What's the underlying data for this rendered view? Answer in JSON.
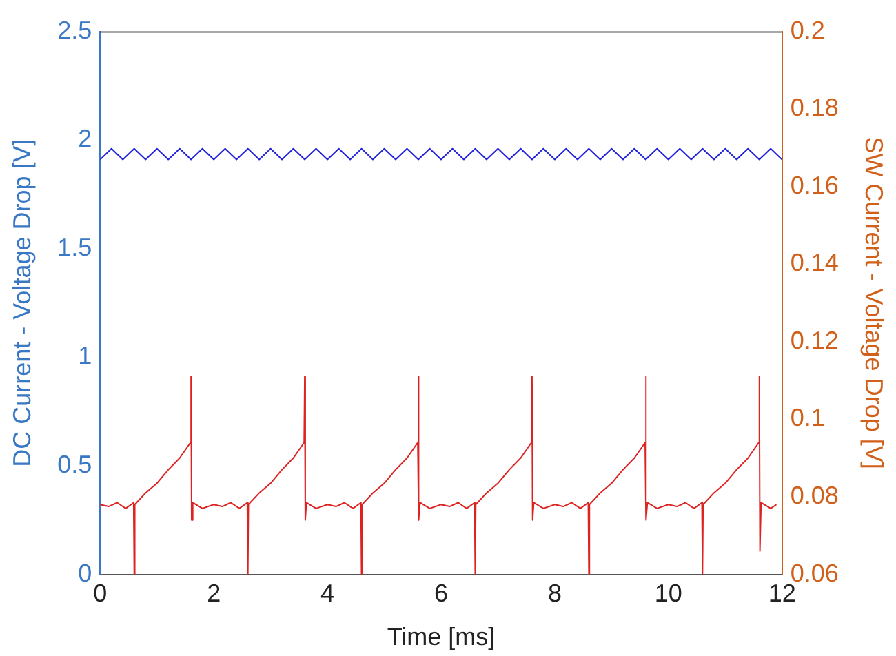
{
  "chart_data": {
    "type": "line",
    "xlabel": "Time [ms]",
    "ylabel": "DC Current - Voltage Drop [V]",
    "y2label": "SW Current - Voltage Drop [V]",
    "xlim": [
      0,
      12
    ],
    "xticks": [
      0,
      2,
      4,
      6,
      8,
      10,
      12
    ],
    "ylim": [
      0,
      2.5
    ],
    "yticks": [
      0,
      0.5,
      1,
      1.5,
      2,
      2.5
    ],
    "y2lim": [
      0.06,
      0.2
    ],
    "y2ticks": [
      0.06,
      0.08,
      0.1,
      0.12,
      0.14,
      0.16,
      0.18,
      0.2
    ],
    "grid": false,
    "legend": false,
    "marker": "none",
    "line_style": "solid",
    "series": [
      {
        "color": "#2222dd",
        "x": [
          0,
          0.2,
          0.4,
          0.6,
          0.8,
          1,
          1.2,
          1.4,
          1.6,
          1.8,
          2,
          2.2,
          2.4,
          2.6,
          2.8,
          3,
          3.2,
          3.4,
          3.6,
          3.8,
          4,
          4.2,
          4.4,
          4.6,
          4.8,
          5,
          5.2,
          5.4,
          5.6,
          5.8,
          6,
          6.2,
          6.4,
          6.6,
          6.8,
          7,
          7.2,
          7.4,
          7.6,
          7.8,
          8,
          8.2,
          8.4,
          8.6,
          8.8,
          9,
          9.2,
          9.4,
          9.6,
          9.8,
          10,
          10.2,
          10.4,
          10.6,
          10.8,
          11,
          11.2,
          11.4,
          11.6,
          11.8,
          12
        ],
        "values": [
          1.91,
          1.96,
          1.91,
          1.96,
          1.91,
          1.96,
          1.91,
          1.96,
          1.91,
          1.96,
          1.91,
          1.96,
          1.91,
          1.96,
          1.91,
          1.96,
          1.91,
          1.96,
          1.91,
          1.96,
          1.91,
          1.96,
          1.91,
          1.96,
          1.91,
          1.96,
          1.91,
          1.96,
          1.91,
          1.96,
          1.91,
          1.96,
          1.91,
          1.96,
          1.91,
          1.96,
          1.91,
          1.96,
          1.91,
          1.96,
          1.91,
          1.96,
          1.91,
          1.96,
          1.91,
          1.96,
          1.91,
          1.96,
          1.91,
          1.96,
          1.91,
          1.96,
          1.91,
          1.96,
          1.91,
          1.96,
          1.91,
          1.96,
          1.91,
          1.96,
          1.91
        ]
      },
      {
        "color": "#dd2222",
        "axis": "y2",
        "x": [
          0,
          0.15,
          0.3,
          0.45,
          0.59,
          0.6,
          0.61,
          0.8,
          1,
          1.2,
          1.4,
          1.59,
          1.6,
          1.61,
          1.63,
          1.8,
          2,
          2.15,
          2.3,
          2.45,
          2.59,
          2.6,
          2.61,
          2.8,
          3,
          3.2,
          3.4,
          3.59,
          3.6,
          3.61,
          3.63,
          3.8,
          4,
          4.15,
          4.3,
          4.45,
          4.59,
          4.6,
          4.61,
          4.8,
          5,
          5.2,
          5.4,
          5.59,
          5.6,
          5.61,
          5.63,
          5.8,
          6,
          6.15,
          6.3,
          6.45,
          6.59,
          6.6,
          6.61,
          6.8,
          7,
          7.2,
          7.4,
          7.59,
          7.6,
          7.61,
          7.63,
          7.8,
          8,
          8.15,
          8.3,
          8.45,
          8.59,
          8.6,
          8.61,
          8.8,
          9,
          9.2,
          9.4,
          9.59,
          9.6,
          9.61,
          9.63,
          9.8,
          10,
          10.15,
          10.3,
          10.45,
          10.59,
          10.6,
          10.61,
          10.8,
          11,
          11.2,
          11.4,
          11.59,
          11.6,
          11.61,
          11.63,
          11.8,
          11.9
        ],
        "values": [
          0.078,
          0.0775,
          0.0785,
          0.077,
          0.0785,
          0.06,
          0.078,
          0.081,
          0.0835,
          0.087,
          0.09,
          0.094,
          0.111,
          0.074,
          0.0785,
          0.077,
          0.078,
          0.0775,
          0.0785,
          0.077,
          0.0785,
          0.06,
          0.078,
          0.081,
          0.0835,
          0.087,
          0.09,
          0.094,
          0.111,
          0.074,
          0.0785,
          0.077,
          0.078,
          0.0775,
          0.0785,
          0.077,
          0.0785,
          0.06,
          0.078,
          0.081,
          0.0835,
          0.087,
          0.09,
          0.094,
          0.111,
          0.074,
          0.0785,
          0.077,
          0.078,
          0.0775,
          0.0785,
          0.077,
          0.0785,
          0.06,
          0.078,
          0.081,
          0.0835,
          0.087,
          0.09,
          0.094,
          0.111,
          0.074,
          0.0785,
          0.077,
          0.078,
          0.0775,
          0.0785,
          0.077,
          0.0785,
          0.06,
          0.078,
          0.081,
          0.0835,
          0.087,
          0.09,
          0.094,
          0.111,
          0.074,
          0.0785,
          0.077,
          0.078,
          0.0775,
          0.0785,
          0.077,
          0.0785,
          0.06,
          0.078,
          0.081,
          0.0835,
          0.087,
          0.09,
          0.094,
          0.111,
          0.066,
          0.0785,
          0.077,
          0.078
        ]
      }
    ]
  }
}
